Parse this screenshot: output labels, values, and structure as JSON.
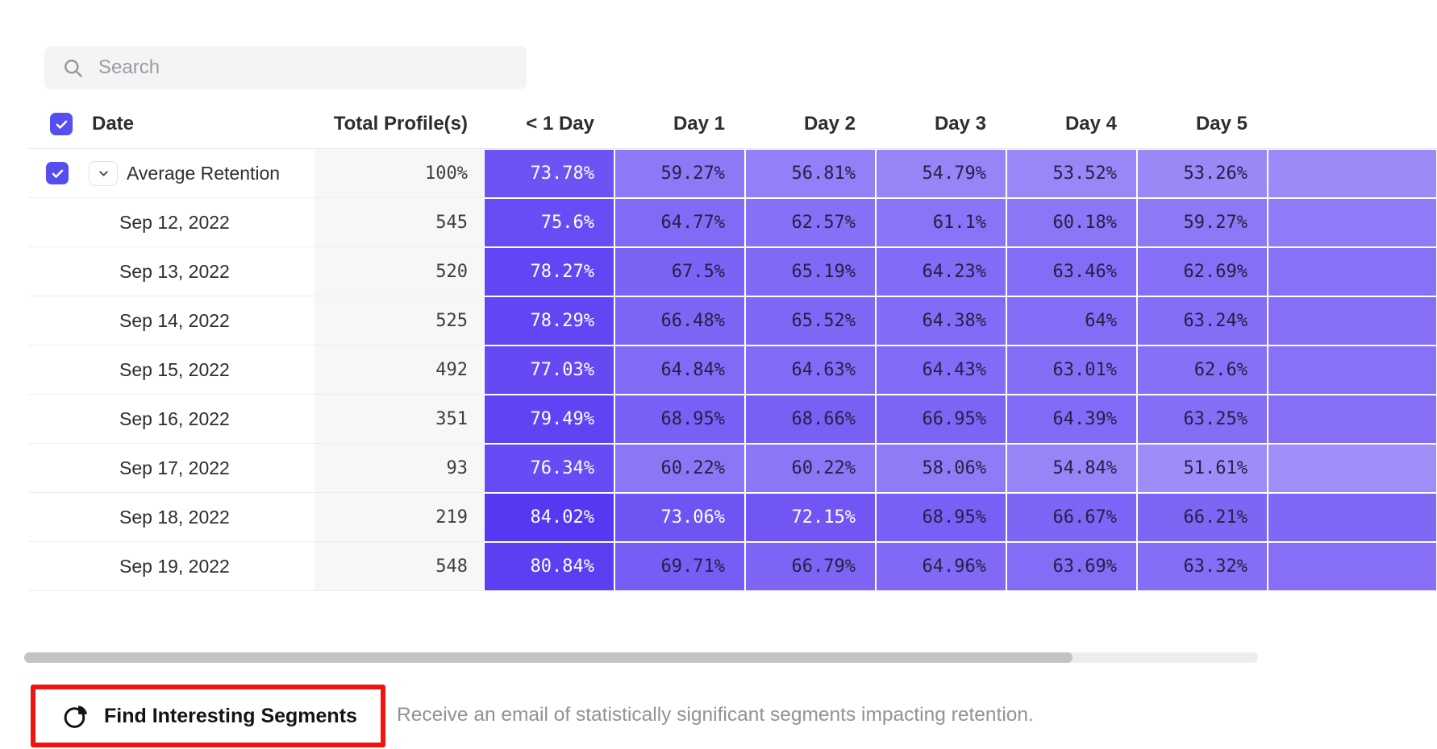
{
  "search": {
    "placeholder": "Search"
  },
  "table": {
    "headers": {
      "date": "Date",
      "total": "Total Profile(s)",
      "days": [
        "< 1 Day",
        "Day 1",
        "Day 2",
        "Day 3",
        "Day 4",
        "Day 5"
      ]
    },
    "rows": [
      {
        "average": true,
        "label": "Average Retention",
        "total": "100%",
        "values": [
          "73.78%",
          "59.27%",
          "56.81%",
          "54.79%",
          "53.52%",
          "53.26%"
        ]
      },
      {
        "average": false,
        "label": "Sep 12, 2022",
        "total": "545",
        "values": [
          "75.6%",
          "64.77%",
          "62.57%",
          "61.1%",
          "60.18%",
          "59.27%"
        ]
      },
      {
        "average": false,
        "label": "Sep 13, 2022",
        "total": "520",
        "values": [
          "78.27%",
          "67.5%",
          "65.19%",
          "64.23%",
          "63.46%",
          "62.69%"
        ]
      },
      {
        "average": false,
        "label": "Sep 14, 2022",
        "total": "525",
        "values": [
          "78.29%",
          "66.48%",
          "65.52%",
          "64.38%",
          "64%",
          "63.24%"
        ]
      },
      {
        "average": false,
        "label": "Sep 15, 2022",
        "total": "492",
        "values": [
          "77.03%",
          "64.84%",
          "64.63%",
          "64.43%",
          "63.01%",
          "62.6%"
        ]
      },
      {
        "average": false,
        "label": "Sep 16, 2022",
        "total": "351",
        "values": [
          "79.49%",
          "68.95%",
          "68.66%",
          "66.95%",
          "64.39%",
          "63.25%"
        ]
      },
      {
        "average": false,
        "label": "Sep 17, 2022",
        "total": "93",
        "values": [
          "76.34%",
          "60.22%",
          "60.22%",
          "58.06%",
          "54.84%",
          "51.61%"
        ]
      },
      {
        "average": false,
        "label": "Sep 18, 2022",
        "total": "219",
        "values": [
          "84.02%",
          "73.06%",
          "72.15%",
          "68.95%",
          "66.67%",
          "66.21%"
        ]
      },
      {
        "average": false,
        "label": "Sep 19, 2022",
        "total": "548",
        "values": [
          "80.84%",
          "69.71%",
          "66.79%",
          "64.96%",
          "63.69%",
          "63.32%"
        ]
      }
    ]
  },
  "footer": {
    "button_label": "Find Interesting Segments",
    "description": "Receive an email of statistically significant segments impacting retention."
  },
  "icons": {
    "search": "search-icon",
    "checkbox_check": "check-icon",
    "expand": "chevron-down-icon",
    "segments": "segments-pie-icon"
  },
  "colors": {
    "accent": "#554ef0",
    "highlight": "#f1130f",
    "cell_dark_text": "#262046",
    "cell_light_text": "#ffffff",
    "cell_high": "#6a4df2",
    "cell_low": "#beb3f8"
  }
}
